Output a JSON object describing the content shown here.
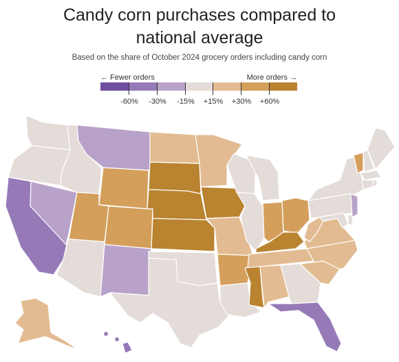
{
  "title_line1": "Candy corn purchases compared to",
  "title_line2": "national average",
  "subtitle": "Based on the share of October 2024 grocery orders including candy corn",
  "legend": {
    "left_label": "← Fewer orders",
    "right_label": "More orders →",
    "ticks": [
      "-60%",
      "-30%",
      "-15%",
      "+15%",
      "+30%",
      "+60%"
    ],
    "colors": [
      "#6f4fa0",
      "#967ab8",
      "#b9a2c9",
      "#e3dcd8",
      "#e3bb92",
      "#d39f5b",
      "#b98330"
    ]
  },
  "map_data": {
    "scale": [
      "≤-60%",
      "-60% to -30%",
      "-30% to -15%",
      "-15% to +15%",
      "+15% to +30%",
      "+30% to +60%",
      "≥+60%"
    ],
    "states": {
      "WA": 3,
      "OR": 3,
      "CA": 1,
      "NV": 2,
      "ID": 3,
      "MT": 2,
      "WY": 5,
      "UT": 5,
      "CO": 5,
      "AZ": 3,
      "NM": 2,
      "ND": 4,
      "SD": 6,
      "NE": 6,
      "KS": 6,
      "OK": 3,
      "TX": 3,
      "MN": 4,
      "IA": 6,
      "MO": 4,
      "AR": 5,
      "LA": 3,
      "WI": 3,
      "IL": 3,
      "MI": 3,
      "IN": 5,
      "OH": 5,
      "KY": 6,
      "TN": 4,
      "MS": 6,
      "AL": 4,
      "GA": 3,
      "FL": 1,
      "SC": 4,
      "NC": 4,
      "VA": 4,
      "WV": 4,
      "MD": 3,
      "DE": 3,
      "PA": 3,
      "NJ": 2,
      "NY": 3,
      "CT": 3,
      "RI": 3,
      "MA": 3,
      "VT": 5,
      "NH": 3,
      "ME": 3,
      "AK": 4,
      "HI": 1
    }
  }
}
